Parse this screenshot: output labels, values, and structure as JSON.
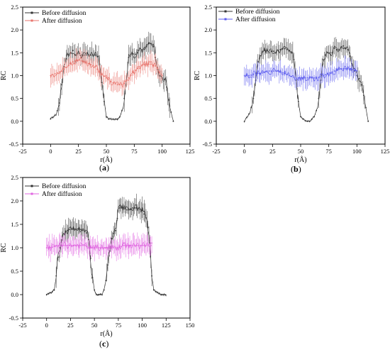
{
  "chart_data": [
    {
      "panel_label": "a",
      "type": "line",
      "xlabel": "r(Å)",
      "ylabel": "RC",
      "xlim": [
        -25,
        125
      ],
      "ylim": [
        -0.5,
        2.5
      ],
      "xticks": [
        -25,
        0,
        25,
        50,
        75,
        100,
        125
      ],
      "yticks": [
        -0.5,
        0.0,
        0.5,
        1.0,
        1.5,
        2.0,
        2.5
      ],
      "grid": false,
      "legend": "top-left",
      "series": [
        {
          "name": "Before diffusion",
          "color": "#333333",
          "x": [
            0,
            5,
            8,
            10,
            12,
            15,
            18,
            20,
            22,
            25,
            28,
            30,
            35,
            40,
            43,
            45,
            47,
            50,
            52,
            55,
            58,
            60,
            62,
            65,
            68,
            70,
            73,
            75,
            78,
            80,
            83,
            85,
            88,
            90,
            93,
            95,
            98,
            100,
            103,
            105,
            108,
            110
          ],
          "y": [
            0.05,
            0.15,
            0.4,
            0.8,
            1.2,
            1.45,
            1.5,
            1.55,
            1.45,
            1.5,
            1.45,
            1.45,
            1.45,
            1.45,
            1.4,
            1.1,
            0.6,
            0.1,
            0.05,
            0.05,
            0.05,
            0.05,
            0.1,
            0.3,
            0.9,
            1.4,
            1.5,
            1.45,
            1.5,
            1.6,
            1.55,
            1.6,
            1.7,
            1.7,
            1.6,
            1.2,
            1.0,
            0.95,
            0.9,
            0.6,
            0.2,
            0.0
          ]
        },
        {
          "name": "After diffusion",
          "color": "#e8746c",
          "x": [
            0,
            5,
            10,
            15,
            20,
            25,
            30,
            35,
            40,
            45,
            50,
            55,
            60,
            65,
            70,
            75,
            80,
            85,
            90,
            95,
            100
          ],
          "y": [
            1.0,
            1.05,
            1.1,
            1.2,
            1.3,
            1.35,
            1.3,
            1.25,
            1.2,
            1.05,
            0.95,
            0.85,
            0.8,
            0.8,
            0.95,
            1.1,
            1.2,
            1.25,
            1.25,
            1.2,
            1.0
          ]
        }
      ]
    },
    {
      "panel_label": "b",
      "type": "line",
      "xlabel": "r(Å)",
      "ylabel": "RC",
      "xlim": [
        -25,
        125
      ],
      "ylim": [
        -0.5,
        2.5
      ],
      "xticks": [
        -25,
        0,
        25,
        50,
        75,
        100,
        125
      ],
      "yticks": [
        -0.5,
        0.0,
        0.5,
        1.0,
        1.5,
        2.0,
        2.5
      ],
      "grid": false,
      "legend": "top-left",
      "series": [
        {
          "name": "Before diffusion",
          "color": "#333333",
          "x": [
            0,
            5,
            8,
            10,
            12,
            15,
            18,
            20,
            22,
            25,
            28,
            30,
            35,
            40,
            43,
            45,
            47,
            50,
            52,
            55,
            58,
            60,
            62,
            65,
            68,
            70,
            73,
            75,
            78,
            80,
            83,
            85,
            88,
            90,
            93,
            95,
            98,
            100,
            103,
            105,
            108,
            110
          ],
          "y": [
            0.0,
            0.2,
            0.5,
            0.9,
            1.3,
            1.5,
            1.55,
            1.55,
            1.5,
            1.55,
            1.5,
            1.55,
            1.6,
            1.55,
            1.5,
            1.2,
            0.6,
            0.1,
            0.05,
            0.0,
            0.0,
            0.05,
            0.1,
            0.3,
            0.9,
            1.35,
            1.5,
            1.5,
            1.5,
            1.6,
            1.55,
            1.6,
            1.65,
            1.6,
            1.55,
            1.3,
            1.1,
            1.0,
            0.9,
            0.7,
            0.3,
            0.0
          ]
        },
        {
          "name": "After diffusion",
          "color": "#5b5bee",
          "x": [
            0,
            5,
            10,
            15,
            20,
            25,
            30,
            35,
            40,
            45,
            50,
            55,
            60,
            65,
            70,
            75,
            80,
            85,
            90,
            95,
            100
          ],
          "y": [
            1.0,
            1.0,
            1.05,
            1.05,
            1.1,
            1.1,
            1.1,
            1.05,
            1.0,
            0.95,
            0.95,
            0.95,
            0.95,
            0.95,
            1.0,
            1.05,
            1.1,
            1.15,
            1.15,
            1.15,
            1.1
          ]
        }
      ]
    },
    {
      "panel_label": "c",
      "type": "line",
      "xlabel": "r(Å)",
      "ylabel": "RC",
      "xlim": [
        -25,
        150
      ],
      "ylim": [
        -0.5,
        2.5
      ],
      "xticks": [
        -25,
        0,
        25,
        50,
        75,
        100,
        125,
        150
      ],
      "yticks": [
        -0.5,
        0.0,
        0.5,
        1.0,
        1.5,
        2.0,
        2.5
      ],
      "grid": false,
      "legend": "top-left",
      "series": [
        {
          "name": "Before diffusion",
          "color": "#333333",
          "x": [
            0,
            5,
            8,
            10,
            12,
            15,
            18,
            20,
            25,
            30,
            35,
            40,
            43,
            45,
            47,
            50,
            52,
            55,
            58,
            60,
            62,
            65,
            68,
            70,
            73,
            75,
            80,
            85,
            90,
            95,
            100,
            105,
            108,
            110,
            112,
            115,
            120,
            125
          ],
          "y": [
            0.0,
            0.05,
            0.1,
            0.4,
            0.8,
            1.1,
            1.3,
            1.35,
            1.4,
            1.4,
            1.4,
            1.35,
            1.3,
            1.05,
            0.5,
            0.1,
            0.0,
            0.0,
            0.0,
            0.1,
            0.3,
            0.8,
            1.2,
            1.3,
            1.4,
            1.85,
            1.85,
            1.8,
            1.85,
            1.85,
            1.8,
            1.6,
            1.1,
            0.4,
            0.1,
            0.05,
            0.0,
            0.0
          ]
        },
        {
          "name": "After diffusion",
          "color": "#e066e0",
          "x": [
            0,
            5,
            10,
            15,
            20,
            25,
            30,
            35,
            40,
            45,
            50,
            55,
            60,
            65,
            70,
            75,
            80,
            85,
            90,
            95,
            100,
            105,
            110
          ],
          "y": [
            1.0,
            1.0,
            1.05,
            1.05,
            1.05,
            1.05,
            1.05,
            1.05,
            1.05,
            1.0,
            1.0,
            1.0,
            1.0,
            1.0,
            1.0,
            1.0,
            1.05,
            1.05,
            1.05,
            1.05,
            1.05,
            1.05,
            1.1
          ]
        }
      ]
    }
  ]
}
